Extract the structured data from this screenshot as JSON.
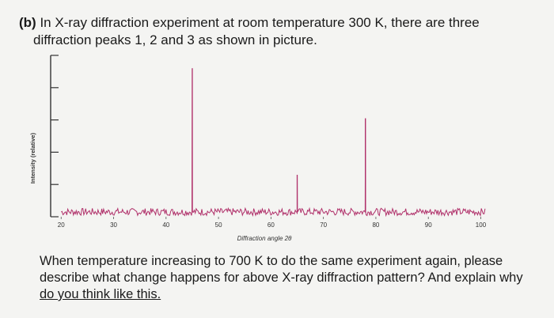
{
  "question": {
    "label": "(b)",
    "line1": "In X-ray diffraction experiment at room temperature 300 K, there are three",
    "line2": "diffraction peaks 1, 2 and 3 as shown in picture.",
    "body_line1": "When temperature increasing to 700 K to do the same experiment again, please",
    "body_line2": "describe what change happens for above X-ray diffraction pattern? And explain why",
    "body_line3": "do you think like this."
  },
  "chart_data": {
    "type": "line",
    "title": "",
    "xlabel": "Diffraction angle 2θ",
    "ylabel": "Intensity (relative)",
    "xlim": [
      18,
      104
    ],
    "ylim": [
      0,
      100
    ],
    "x_ticks": [
      20,
      30,
      40,
      50,
      60,
      70,
      80,
      90,
      100
    ],
    "grid": false,
    "series": [
      {
        "color": "#b0306a",
        "peaks": [
          {
            "x": 45,
            "y": 92
          },
          {
            "x": 65,
            "y": 26
          },
          {
            "x": 78,
            "y": 61
          }
        ],
        "baseline": 3
      }
    ]
  }
}
